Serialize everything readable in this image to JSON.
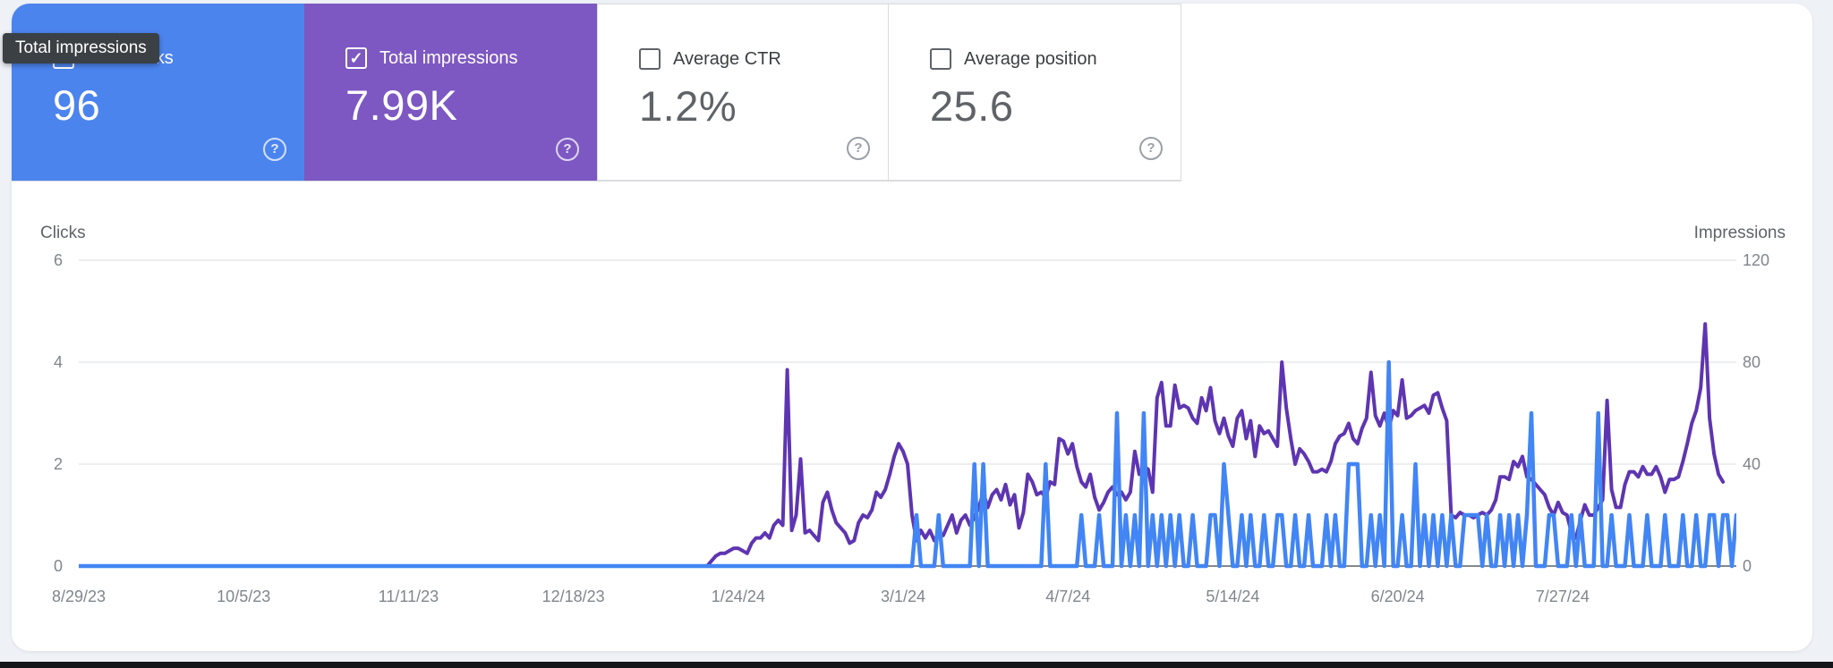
{
  "page": {
    "background": "#eef1f6",
    "panel_bg": "#ffffff",
    "bottom_bar_color": "#14161a"
  },
  "tooltip": {
    "text": "Total impressions",
    "bg": "#3b4045",
    "text_color": "#ffffff"
  },
  "metric_cards": [
    {
      "label": "Total clicks",
      "value": "96",
      "selected": true,
      "bg": "#4c84ee"
    },
    {
      "label": "Total impressions",
      "value": "7.99K",
      "selected": true,
      "bg": "#7d58c2"
    },
    {
      "label": "Average CTR",
      "value": "1.2%",
      "selected": false,
      "bg": "#ffffff"
    },
    {
      "label": "Average position",
      "value": "25.6",
      "selected": false,
      "bg": "#ffffff"
    }
  ],
  "help_glyph": "?",
  "chart_data": {
    "type": "line",
    "title": "",
    "grid": true,
    "legend_position": "none",
    "left_axis": {
      "title": "Clicks",
      "ticks": [
        0,
        2,
        4,
        6
      ],
      "range": [
        0,
        6
      ]
    },
    "right_axis": {
      "title": "Impressions",
      "ticks": [
        0,
        40,
        80,
        120
      ],
      "range": [
        0,
        120
      ]
    },
    "x_tick_labels": [
      "8/29/23",
      "10/5/23",
      "11/11/23",
      "12/18/23",
      "1/24/24",
      "3/1/24",
      "4/7/24",
      "5/14/24",
      "6/20/24",
      "7/27/24"
    ],
    "x_tick_days": [
      0,
      37,
      74,
      111,
      148,
      185,
      222,
      259,
      296,
      333
    ],
    "x_domain_days": 372,
    "series": [
      {
        "name": "Clicks",
        "axis": "left",
        "color": "#4285f4",
        "values": [
          0,
          0,
          0,
          0,
          0,
          0,
          0,
          0,
          0,
          0,
          0,
          0,
          0,
          0,
          0,
          0,
          0,
          0,
          0,
          0,
          0,
          0,
          0,
          0,
          0,
          0,
          0,
          0,
          0,
          0,
          0,
          0,
          0,
          0,
          0,
          0,
          0,
          0,
          0,
          0,
          0,
          0,
          0,
          0,
          0,
          0,
          0,
          0,
          0,
          0,
          0,
          0,
          0,
          0,
          0,
          0,
          0,
          0,
          0,
          0,
          0,
          0,
          0,
          0,
          0,
          0,
          0,
          0,
          0,
          0,
          0,
          0,
          0,
          0,
          0,
          0,
          0,
          0,
          0,
          0,
          0,
          0,
          0,
          0,
          0,
          0,
          0,
          0,
          0,
          0,
          0,
          0,
          0,
          0,
          0,
          0,
          0,
          0,
          0,
          0,
          0,
          0,
          0,
          0,
          0,
          0,
          0,
          0,
          0,
          0,
          0,
          0,
          0,
          0,
          0,
          0,
          0,
          0,
          0,
          0,
          0,
          0,
          0,
          0,
          0,
          0,
          0,
          0,
          0,
          0,
          0,
          0,
          0,
          0,
          0,
          0,
          0,
          0,
          0,
          0,
          0,
          0,
          0,
          0,
          0,
          0,
          0,
          0,
          0,
          0,
          0,
          0,
          0,
          0,
          0,
          0,
          0,
          0,
          0,
          0,
          0,
          0,
          0,
          0,
          0,
          0,
          0,
          0,
          0,
          0,
          0,
          0,
          0,
          0,
          0,
          0,
          0,
          0,
          0,
          0,
          0,
          0,
          0,
          0,
          0,
          0,
          0,
          0,
          1,
          0,
          0,
          0,
          0,
          1,
          0,
          0,
          0,
          0,
          0,
          0,
          0,
          2,
          0,
          2,
          0,
          0,
          0,
          0,
          0,
          0,
          0,
          0,
          0,
          0,
          0,
          0,
          0,
          2,
          0,
          0,
          0,
          0,
          0,
          0,
          0,
          1,
          0,
          0,
          0,
          1,
          0,
          0,
          0,
          3,
          0,
          1,
          0,
          1,
          0,
          3,
          0,
          1,
          0,
          1,
          0,
          1,
          0,
          1,
          0,
          0,
          1,
          0,
          0,
          0,
          1,
          1,
          0,
          2,
          1,
          0,
          0,
          1,
          0,
          1,
          0,
          0,
          1,
          0,
          0,
          1,
          1,
          0,
          0,
          1,
          0,
          0,
          1,
          0,
          0,
          0,
          1,
          0,
          1,
          0,
          0,
          2,
          2,
          2,
          0,
          0,
          1,
          0,
          1,
          0,
          4,
          0,
          0,
          1,
          0,
          0,
          2,
          0,
          1,
          0,
          1,
          0,
          1,
          0,
          1,
          0,
          0,
          1,
          1,
          1,
          1,
          0,
          1,
          0,
          0,
          1,
          0,
          1,
          0,
          1,
          0,
          1,
          3,
          0,
          0,
          0,
          1,
          1,
          0,
          0,
          0,
          1,
          0,
          1,
          0,
          0,
          0,
          3,
          0,
          0,
          1,
          0,
          0,
          0,
          1,
          0,
          0,
          0,
          1,
          0,
          0,
          0,
          1,
          0,
          0,
          0,
          1,
          0,
          0,
          1,
          0,
          0,
          1,
          1,
          0,
          1,
          1,
          0,
          1,
          0,
          0,
          1,
          0,
          1,
          1,
          1,
          1,
          1,
          1,
          1,
          2,
          0,
          0,
          0,
          0,
          0
        ]
      },
      {
        "name": "Impressions",
        "axis": "right",
        "color": "#5e35b1",
        "values": [
          0,
          0,
          0,
          0,
          0,
          0,
          0,
          0,
          0,
          0,
          0,
          0,
          0,
          0,
          0,
          0,
          0,
          0,
          0,
          0,
          0,
          0,
          0,
          0,
          0,
          0,
          0,
          0,
          0,
          0,
          0,
          0,
          0,
          0,
          0,
          0,
          0,
          0,
          0,
          0,
          0,
          0,
          0,
          0,
          0,
          0,
          0,
          0,
          0,
          0,
          0,
          0,
          0,
          0,
          0,
          0,
          0,
          0,
          0,
          0,
          0,
          0,
          0,
          0,
          0,
          0,
          0,
          0,
          0,
          0,
          0,
          0,
          0,
          0,
          0,
          0,
          0,
          0,
          0,
          0,
          0,
          0,
          0,
          0,
          0,
          0,
          0,
          0,
          0,
          0,
          0,
          0,
          0,
          0,
          0,
          0,
          0,
          0,
          0,
          0,
          0,
          0,
          0,
          0,
          0,
          0,
          0,
          0,
          0,
          0,
          0,
          0,
          0,
          0,
          0,
          0,
          0,
          0,
          0,
          0,
          0,
          0,
          0,
          0,
          0,
          0,
          0,
          0,
          0,
          0,
          0,
          0,
          0,
          0,
          0,
          0,
          0,
          0,
          0,
          0,
          0,
          0,
          2,
          4,
          5,
          5,
          6,
          7,
          7,
          6,
          5,
          9,
          11,
          11,
          13,
          11,
          16,
          18,
          16,
          77,
          14,
          20,
          42,
          13,
          14,
          12,
          10,
          25,
          29,
          22,
          17,
          15,
          13,
          9,
          10,
          17,
          20,
          19,
          22,
          29,
          27,
          30,
          36,
          43,
          48,
          45,
          40,
          20,
          10,
          14,
          11,
          14,
          10,
          13,
          12,
          16,
          20,
          13,
          18,
          20,
          16,
          19,
          23,
          29,
          23,
          28,
          30,
          26,
          32,
          24,
          28,
          15,
          21,
          36,
          33,
          28,
          29,
          27,
          33,
          32,
          50,
          49,
          44,
          48,
          39,
          33,
          31,
          36,
          27,
          22,
          25,
          29,
          31,
          28,
          29,
          26,
          29,
          45,
          36,
          39,
          38,
          29,
          66,
          72,
          55,
          55,
          71,
          62,
          63,
          62,
          58,
          56,
          66,
          61,
          70,
          57,
          52,
          58,
          51,
          47,
          58,
          61,
          50,
          57,
          43,
          55,
          52,
          53,
          50,
          47,
          80,
          62,
          50,
          40,
          46,
          44,
          41,
          37,
          37,
          38,
          37,
          41,
          48,
          51,
          52,
          56,
          50,
          48,
          54,
          58,
          76,
          59,
          55,
          60,
          54,
          61,
          59,
          73,
          58,
          59,
          61,
          62,
          63,
          60,
          67,
          68,
          62,
          57,
          20,
          19,
          21,
          20,
          20,
          19,
          20,
          21,
          20,
          22,
          26,
          35,
          35,
          34,
          41,
          39,
          43,
          35,
          34,
          32,
          30,
          28,
          23,
          20,
          25,
          21,
          20,
          13,
          11,
          18,
          24,
          20,
          20,
          23,
          26,
          65,
          30,
          23,
          23,
          32,
          37,
          37,
          35,
          39,
          36,
          36,
          39,
          35,
          29,
          34,
          34,
          35,
          41,
          48,
          56,
          61,
          70,
          95,
          58,
          44,
          36,
          33
        ]
      }
    ]
  }
}
